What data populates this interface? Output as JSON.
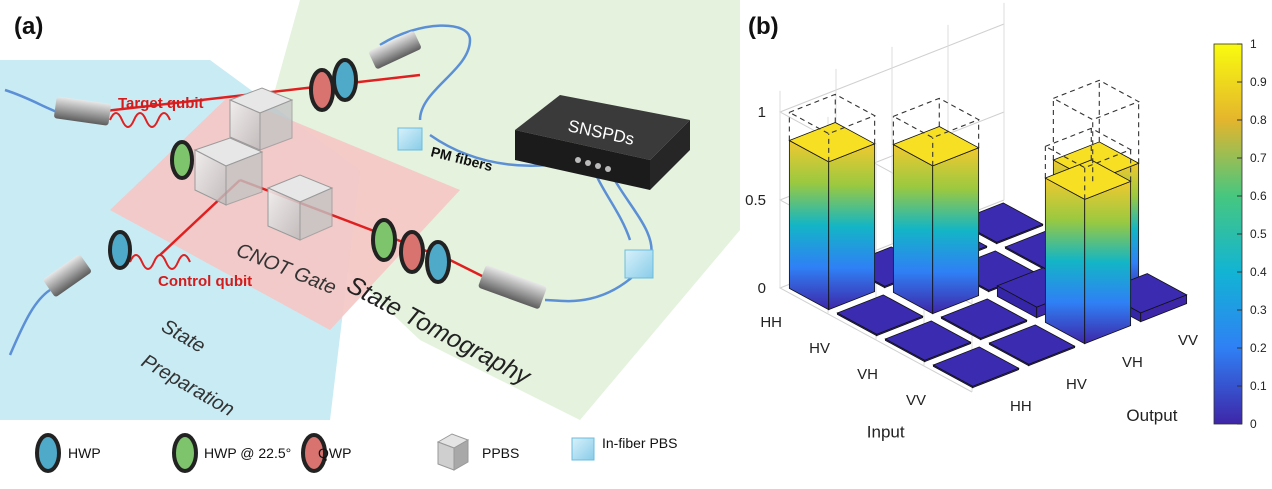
{
  "panel_a": {
    "label": "(a)",
    "region_labels": {
      "state_preparation_line1": "State",
      "state_preparation_line2": "Preparation",
      "cnot_gate": "CNOT Gate",
      "state_tomography": "State Tomography"
    },
    "beam_labels": {
      "target_qubit": "Target qubit",
      "control_qubit": "Control qubit"
    },
    "detector_label": "SNSPDs",
    "fiber_label": "PM fibers",
    "legend": [
      {
        "label": "HWP",
        "icon": "hwp-waveplate-icon",
        "color": "#4fa9c8"
      },
      {
        "label": "HWP @ 22.5°",
        "icon": "hwp-22-waveplate-icon",
        "color": "#7dc46c"
      },
      {
        "label": "QWP",
        "icon": "qwp-waveplate-icon",
        "color": "#d9736f"
      },
      {
        "label": "PPBS",
        "icon": "ppbs-cube-icon",
        "color": "#c9c9c9"
      },
      {
        "label": "In-fiber PBS",
        "icon": "in-fiber-pbs-icon",
        "color": "#a9dcf0"
      }
    ],
    "colors": {
      "prep_region": "#bfe8f2",
      "gate_region": "#f5c6c4",
      "tomography_region": "#dff0d8",
      "beam": "#e02020",
      "fiber": "#5b8fd6",
      "label_red": "#d41c1c"
    }
  },
  "panel_b": {
    "label": "(b)",
    "chart_data": {
      "type": "bar3d",
      "input_axis_label": "Input",
      "output_axis_label": "Output",
      "input_categories": [
        "HH",
        "HV",
        "VH",
        "VV"
      ],
      "output_categories": [
        "HH",
        "HV",
        "VH",
        "VV"
      ],
      "z_ticks": [
        "0",
        "0.5",
        "1"
      ],
      "zlim": [
        0,
        1
      ],
      "measured": [
        {
          "input": "HH",
          "output": "HH",
          "value": 0.84
        },
        {
          "input": "HV",
          "output": "HV",
          "value": 0.84
        },
        {
          "input": "VH",
          "output": "VV",
          "value": 0.65
        },
        {
          "input": "VV",
          "output": "VH",
          "value": 0.82
        },
        {
          "input": "VH",
          "output": "VH",
          "value": 0.06
        },
        {
          "input": "VV",
          "output": "VV",
          "value": 0.05
        }
      ],
      "ideal": [
        {
          "input": "HH",
          "output": "HH",
          "value": 1
        },
        {
          "input": "HV",
          "output": "HV",
          "value": 1
        },
        {
          "input": "VH",
          "output": "VV",
          "value": 1
        },
        {
          "input": "VV",
          "output": "VH",
          "value": 1
        }
      ],
      "colorbar": {
        "ticks": [
          "0",
          "0.1",
          "0.2",
          "0.3",
          "0.4",
          "0.5",
          "0.6",
          "0.7",
          "0.8",
          "0.9",
          "1"
        ],
        "colormap": "parula",
        "range": [
          0,
          1
        ]
      },
      "grid": true
    }
  }
}
